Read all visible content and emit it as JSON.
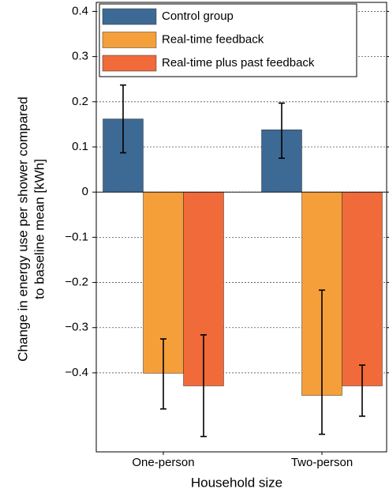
{
  "chart_data": {
    "type": "bar",
    "xlabel": "Household size",
    "ylabel": [
      "Change in energy use per shower compared",
      "to baseline mean [kWh]"
    ],
    "categories": [
      "One-person",
      "Two-person"
    ],
    "series": [
      {
        "name": "Control group",
        "color": "#3d6a94",
        "values": [
          0.162,
          0.138
        ],
        "err_low": [
          0.087,
          0.075
        ],
        "err_high": [
          0.237,
          0.197
        ]
      },
      {
        "name": "Real-time feedback",
        "color": "#f59f3a",
        "values": [
          -0.401,
          -0.45
        ],
        "err_low": [
          -0.48,
          -0.536
        ],
        "err_high": [
          -0.325,
          -0.217
        ]
      },
      {
        "name": "Real-time plus past feedback",
        "color": "#f06a3a",
        "values": [
          -0.429,
          -0.429
        ],
        "err_low": [
          -0.541,
          -0.496
        ],
        "err_high": [
          -0.316,
          -0.383
        ]
      }
    ],
    "ylim": [
      -0.575,
      0.42
    ],
    "yticks": [
      {
        "value": -0.4,
        "label": "−0.4"
      },
      {
        "value": -0.3,
        "label": "−0.3"
      },
      {
        "value": -0.2,
        "label": "−0.2"
      },
      {
        "value": -0.1,
        "label": "−0.1"
      },
      0,
      0.1,
      0.2,
      0.3,
      0.4
    ],
    "grid": true,
    "legend": "upper-left"
  }
}
